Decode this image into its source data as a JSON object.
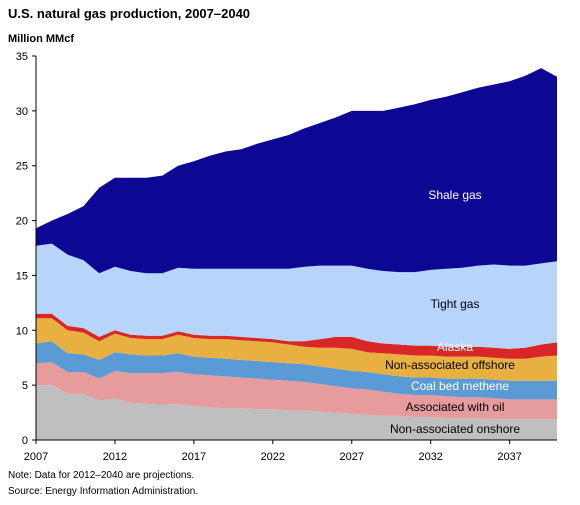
{
  "chart_data": {
    "type": "area",
    "stacked": true,
    "title": "U.S. natural gas production, 2007–2040",
    "unit_label": "Million MMcf",
    "xlabel": "",
    "ylabel": "",
    "xlim": [
      2007,
      2040
    ],
    "ylim": [
      0,
      35
    ],
    "x_ticks": [
      2007,
      2012,
      2017,
      2022,
      2027,
      2032,
      2037
    ],
    "y_ticks": [
      0,
      5,
      10,
      15,
      20,
      25,
      30,
      35
    ],
    "grid": false,
    "legend": "inline labels",
    "x": [
      2007,
      2008,
      2009,
      2010,
      2011,
      2012,
      2013,
      2014,
      2015,
      2016,
      2017,
      2018,
      2019,
      2020,
      2021,
      2022,
      2023,
      2024,
      2025,
      2026,
      2027,
      2028,
      2029,
      2030,
      2031,
      2032,
      2033,
      2034,
      2035,
      2036,
      2037,
      2038,
      2039,
      2040
    ],
    "series": [
      {
        "name": "Non-associated onshore",
        "color": "#bfbfbf",
        "values": [
          5.0,
          5.0,
          4.2,
          4.2,
          3.6,
          3.8,
          3.4,
          3.3,
          3.2,
          3.3,
          3.1,
          3.0,
          2.9,
          2.9,
          2.8,
          2.8,
          2.7,
          2.7,
          2.6,
          2.5,
          2.4,
          2.3,
          2.2,
          2.2,
          2.1,
          2.1,
          2.0,
          2.0,
          2.0,
          1.9,
          1.9,
          1.9,
          1.9,
          1.9
        ]
      },
      {
        "name": "Associated with oil",
        "color": "#e69c9c",
        "values": [
          2.0,
          2.1,
          2.0,
          2.0,
          2.0,
          2.5,
          2.7,
          2.8,
          2.9,
          2.9,
          2.9,
          2.9,
          2.9,
          2.8,
          2.8,
          2.7,
          2.7,
          2.6,
          2.5,
          2.4,
          2.3,
          2.3,
          2.2,
          2.0,
          2.0,
          2.0,
          2.0,
          1.9,
          1.9,
          1.9,
          1.8,
          1.8,
          1.8,
          1.8
        ]
      },
      {
        "name": "Coal bed methene",
        "color": "#5b9bd5",
        "values": [
          1.8,
          1.9,
          1.7,
          1.6,
          1.7,
          1.7,
          1.7,
          1.6,
          1.6,
          1.7,
          1.6,
          1.6,
          1.6,
          1.6,
          1.6,
          1.6,
          1.6,
          1.6,
          1.6,
          1.6,
          1.6,
          1.6,
          1.6,
          1.6,
          1.6,
          1.6,
          1.6,
          1.7,
          1.7,
          1.7,
          1.7,
          1.7,
          1.7,
          1.7
        ]
      },
      {
        "name": "Non-associated offshore",
        "color": "#e8b040",
        "values": [
          2.3,
          2.1,
          2.1,
          2.0,
          1.7,
          1.7,
          1.5,
          1.5,
          1.5,
          1.7,
          1.7,
          1.7,
          1.8,
          1.8,
          1.8,
          1.8,
          1.7,
          1.6,
          1.7,
          1.9,
          2.0,
          1.8,
          1.9,
          2.0,
          2.0,
          2.0,
          2.0,
          2.0,
          2.0,
          2.0,
          2.0,
          2.0,
          2.2,
          2.3
        ]
      },
      {
        "name": "Alaska",
        "color": "#d92727",
        "values": [
          0.4,
          0.4,
          0.4,
          0.4,
          0.4,
          0.3,
          0.3,
          0.3,
          0.3,
          0.3,
          0.3,
          0.3,
          0.3,
          0.3,
          0.3,
          0.3,
          0.3,
          0.5,
          0.8,
          1.0,
          1.1,
          1.0,
          0.9,
          0.9,
          0.9,
          0.9,
          0.9,
          0.9,
          0.9,
          0.9,
          0.9,
          1.0,
          1.1,
          1.2
        ]
      },
      {
        "name": "Tight gas",
        "color": "#b7d4fa",
        "values": [
          6.2,
          6.4,
          6.5,
          6.2,
          5.8,
          5.8,
          5.8,
          5.7,
          5.7,
          5.8,
          6.0,
          6.1,
          6.1,
          6.2,
          6.3,
          6.4,
          6.6,
          6.8,
          6.7,
          6.5,
          6.5,
          6.6,
          6.6,
          6.6,
          6.7,
          6.9,
          7.1,
          7.2,
          7.4,
          7.6,
          7.6,
          7.5,
          7.4,
          7.4
        ]
      },
      {
        "name": "Shale gas",
        "color": "#0c0893",
        "values": [
          1.6,
          2.1,
          3.7,
          4.9,
          7.8,
          8.1,
          8.5,
          8.7,
          8.9,
          9.3,
          9.8,
          10.3,
          10.7,
          10.9,
          11.4,
          11.8,
          12.2,
          12.6,
          13.0,
          13.5,
          14.1,
          14.4,
          14.6,
          15.0,
          15.3,
          15.5,
          15.7,
          16.0,
          16.2,
          16.4,
          16.8,
          17.3,
          17.8,
          16.8
        ]
      }
    ]
  },
  "labels": {
    "shale": "Shale gas",
    "tight": "Tight gas",
    "alaska": "Alaska",
    "offshore": "Non-associated offshore",
    "coalbed": "Coal bed methene",
    "associated": "Associated with oil",
    "onshore": "Non-associated onshore"
  },
  "notes": {
    "note": "Note: Data for 2012–2040 are projections.",
    "source": "Source: Energy Information Administration."
  }
}
